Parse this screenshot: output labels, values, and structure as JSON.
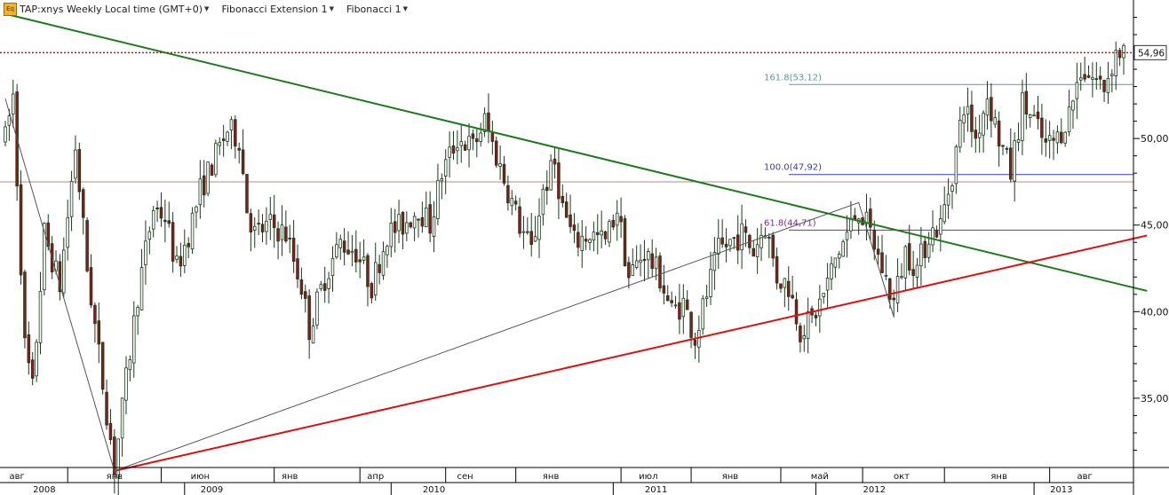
{
  "toolbar": {
    "logo_text": "Eq",
    "symbol_label": "TAP:xnys Weekly Local time (GMT+0)",
    "study1_label": "Fibonacci Extension 1",
    "study2_label": "Fibonacci 1"
  },
  "colors": {
    "up_candle": "#ffffff",
    "down_candle": "#8b1a1a",
    "candle_outline": "#1a3a1a",
    "green_trendline": "#1e7a1e",
    "red_trendline": "#e01010",
    "current_price_line": "#cc1111",
    "fib_161": "#5a9a9a",
    "fib_100": "#3a3ab8",
    "fib_61": "#7a2a9a",
    "fib_base": "#9a5a5a"
  },
  "chart_data": {
    "type": "candlestick",
    "title": "TAP:xnys Weekly Local time (GMT+0)",
    "ylim": [
      31,
      58
    ],
    "y_ticks": [
      "35,00",
      "40,00",
      "45,00",
      "50,00",
      "54,96"
    ],
    "current_price": 54.96,
    "current_price_label": "54,96",
    "x_tick_labels": [
      "авг",
      "янв",
      "июн",
      "янв",
      "апр",
      "сен",
      "янв",
      "июл",
      "янв",
      "май",
      "окт",
      "янв",
      "авг"
    ],
    "x_year_labels": [
      "2008",
      "2009",
      "2010",
      "2011",
      "2012",
      "2013"
    ],
    "fibonacci_levels": [
      {
        "label": "161.8(53,12)",
        "value": 53.12
      },
      {
        "label": "100.0(47,92)",
        "value": 47.92
      },
      {
        "label": "61.8(44,71)",
        "value": 44.71
      },
      {
        "label": "",
        "value": 47.5
      }
    ],
    "trendlines": [
      {
        "name": "green-resistance",
        "from": {
          "week": 0,
          "price": 57.2
        },
        "to": {
          "week": 293,
          "price": 41.2
        }
      },
      {
        "name": "red-support",
        "from": {
          "week": 28,
          "price": 30.8
        },
        "to": {
          "week": 293,
          "price": 44.4
        }
      },
      {
        "name": "fibonacci-swing",
        "points": [
          {
            "week": 0,
            "price": 52.3
          },
          {
            "week": 28,
            "price": 30.8
          },
          {
            "week": 219,
            "price": 46.3
          },
          {
            "week": 228,
            "price": 39.7
          }
        ]
      }
    ],
    "weeks": 287,
    "anchors": [
      [
        0,
        50.0
      ],
      [
        2,
        52.5
      ],
      [
        5,
        38.0
      ],
      [
        7,
        35.5
      ],
      [
        10,
        44.5
      ],
      [
        14,
        41.5
      ],
      [
        18,
        49.5
      ],
      [
        21,
        42.5
      ],
      [
        24,
        37.5
      ],
      [
        28,
        31.0
      ],
      [
        31,
        36.0
      ],
      [
        34,
        41.0
      ],
      [
        38,
        46.0
      ],
      [
        41,
        45.5
      ],
      [
        44,
        42.5
      ],
      [
        47,
        44.5
      ],
      [
        50,
        47.0
      ],
      [
        54,
        49.0
      ],
      [
        57,
        50.5
      ],
      [
        60,
        50.0
      ],
      [
        62,
        46.0
      ],
      [
        64,
        44.5
      ],
      [
        68,
        45.0
      ],
      [
        72,
        44.5
      ],
      [
        76,
        41.5
      ],
      [
        78,
        39.0
      ],
      [
        82,
        42.0
      ],
      [
        86,
        44.0
      ],
      [
        90,
        43.5
      ],
      [
        94,
        41.5
      ],
      [
        98,
        44.5
      ],
      [
        102,
        45.0
      ],
      [
        106,
        46.0
      ],
      [
        109,
        45.0
      ],
      [
        112,
        48.0
      ],
      [
        116,
        50.0
      ],
      [
        120,
        49.5
      ],
      [
        123,
        51.0
      ],
      [
        126,
        49.0
      ],
      [
        129,
        47.0
      ],
      [
        132,
        45.0
      ],
      [
        135,
        43.5
      ],
      [
        138,
        47.0
      ],
      [
        141,
        48.5
      ],
      [
        143,
        46.0
      ],
      [
        146,
        44.0
      ],
      [
        150,
        44.5
      ],
      [
        154,
        44.0
      ],
      [
        157,
        46.0
      ],
      [
        160,
        42.0
      ],
      [
        164,
        43.5
      ],
      [
        168,
        42.0
      ],
      [
        171,
        40.0
      ],
      [
        174,
        40.5
      ],
      [
        177,
        38.5
      ],
      [
        180,
        41.0
      ],
      [
        183,
        43.5
      ],
      [
        186,
        44.0
      ],
      [
        189,
        44.5
      ],
      [
        192,
        43.5
      ],
      [
        195,
        45.0
      ],
      [
        198,
        42.0
      ],
      [
        201,
        41.5
      ],
      [
        204,
        39.0
      ],
      [
        207,
        39.5
      ],
      [
        210,
        41.0
      ],
      [
        213,
        43.0
      ],
      [
        216,
        44.5
      ],
      [
        219,
        46.0
      ],
      [
        222,
        44.5
      ],
      [
        225,
        42.5
      ],
      [
        228,
        40.5
      ],
      [
        231,
        43.5
      ],
      [
        234,
        42.5
      ],
      [
        237,
        44.5
      ],
      [
        240,
        45.0
      ],
      [
        243,
        48.0
      ],
      [
        246,
        52.0
      ],
      [
        249,
        50.0
      ],
      [
        252,
        52.5
      ],
      [
        255,
        50.0
      ],
      [
        258,
        48.0
      ],
      [
        261,
        52.0
      ],
      [
        264,
        51.0
      ],
      [
        267,
        49.5
      ],
      [
        270,
        50.0
      ],
      [
        273,
        51.5
      ],
      [
        276,
        54.0
      ],
      [
        279,
        53.5
      ],
      [
        282,
        53.0
      ],
      [
        285,
        54.96
      ]
    ]
  }
}
